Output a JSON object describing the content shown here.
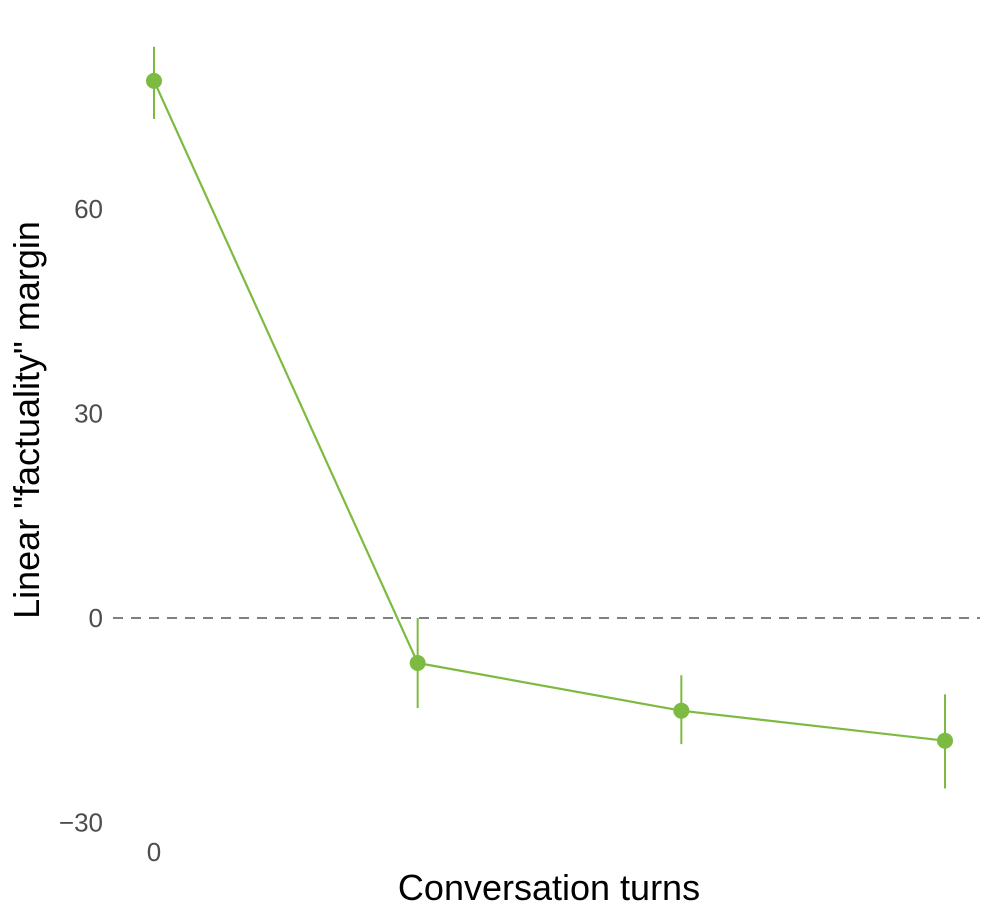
{
  "chart_data": {
    "type": "line",
    "title": "",
    "xlabel": "Conversation turns",
    "ylabel": "Linear \"factuality\" margin",
    "x": [
      0,
      1,
      2,
      3
    ],
    "x_tick_labels": [
      "0"
    ],
    "y_ticks": [
      -30,
      0,
      30,
      60
    ],
    "y_tick_labels": [
      "−30",
      "0",
      "30",
      "60"
    ],
    "ylim": [
      -30,
      80
    ],
    "xlim": [
      0,
      3
    ],
    "grid": false,
    "reference_line": {
      "y": 0,
      "style": "dashed",
      "color": "#808080"
    },
    "series": [
      {
        "values": [
          78.8,
          -6.6,
          -13.6,
          -18.0
        ],
        "error_low": [
          73.2,
          -13.2,
          -18.5,
          -25.0
        ],
        "error_high": [
          83.8,
          0.0,
          -8.4,
          -11.2
        ],
        "color": "#7dba41"
      }
    ]
  }
}
